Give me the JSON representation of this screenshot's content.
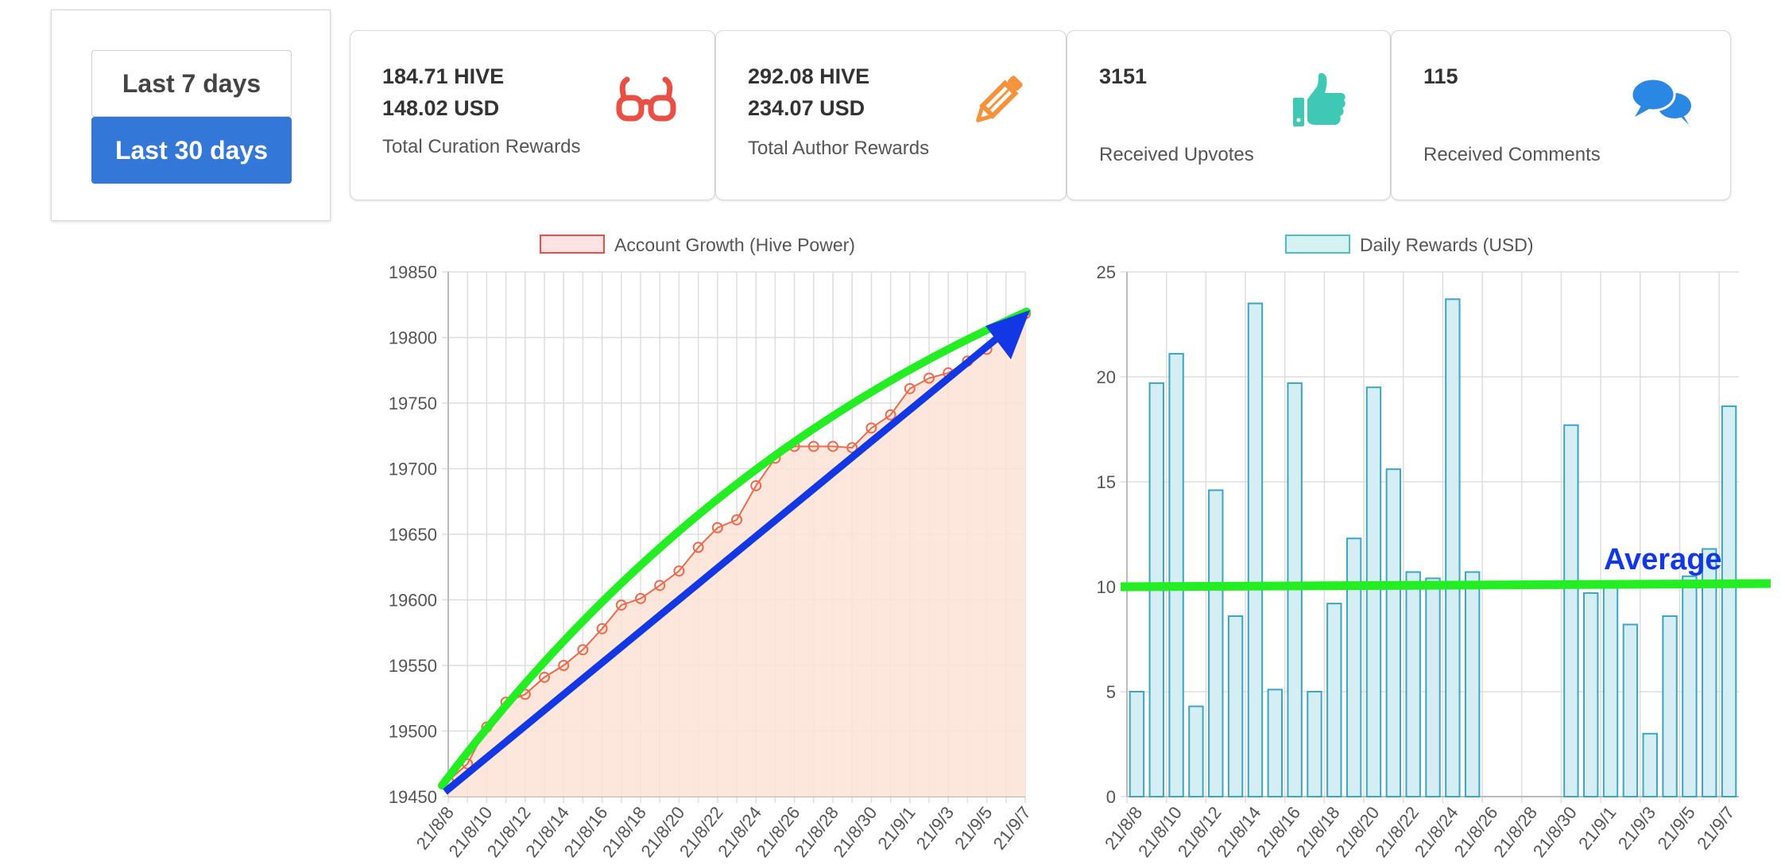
{
  "range_buttons": {
    "last7": "Last 7 days",
    "last30": "Last 30 days"
  },
  "cards": {
    "curation": {
      "hive": "184.71 HIVE",
      "usd": "148.02 USD",
      "label": "Total Curation Rewards",
      "icon": "glasses-icon",
      "color": "#ea4f43"
    },
    "author": {
      "hive": "292.08 HIVE",
      "usd": "234.07 USD",
      "label": "Total Author Rewards",
      "icon": "pencil-icon",
      "color": "#f6923c"
    },
    "upvotes": {
      "count": "3151",
      "label": "Received Upvotes",
      "icon": "thumbs-up-icon",
      "color": "#3dc9b3"
    },
    "comments": {
      "count": "115",
      "label": "Received Comments",
      "icon": "comments-icon",
      "color": "#2b87e4"
    }
  },
  "annotation": {
    "average_label": "Average",
    "average_color": "#1238e6",
    "line_color": "#22ee22"
  },
  "chart_data": [
    {
      "type": "line",
      "legend": "Account Growth (Hive Power)",
      "color": "#ee6a4a",
      "fill": "#fde3d6",
      "ylim": [
        19450,
        19850
      ],
      "yticks": [
        19450,
        19500,
        19550,
        19600,
        19650,
        19700,
        19750,
        19800,
        19850
      ],
      "x_labels": [
        "21/8/8",
        "21/8/10",
        "21/8/12",
        "21/8/14",
        "21/8/16",
        "21/8/18",
        "21/8/20",
        "21/8/22",
        "21/8/24",
        "21/8/26",
        "21/8/28",
        "21/8/30",
        "21/9/1",
        "21/9/3",
        "21/9/5",
        "21/9/7"
      ],
      "values": [
        19462,
        19475,
        19503,
        19522,
        19528,
        19541,
        19550,
        19562,
        19578,
        19596,
        19601,
        19611,
        19622,
        19640,
        19655,
        19661,
        19687,
        19708,
        19717,
        19717,
        19717,
        19716,
        19731,
        19741,
        19761,
        19769,
        19773,
        19782,
        19791,
        19806,
        19818
      ]
    },
    {
      "type": "bar",
      "legend": "Daily Rewards (USD)",
      "color": "#3aa6c6",
      "fill": "#d5eef4",
      "legend_color": "#4bc0c0",
      "ylim": [
        0,
        25
      ],
      "yticks": [
        0,
        5,
        10,
        15,
        20,
        25
      ],
      "x_labels": [
        "21/8/8",
        "21/8/10",
        "21/8/12",
        "21/8/14",
        "21/8/16",
        "21/8/18",
        "21/8/20",
        "21/8/22",
        "21/8/24",
        "21/8/26",
        "21/8/28",
        "21/8/30",
        "21/9/1",
        "21/9/3",
        "21/9/5",
        "21/9/7"
      ],
      "values": [
        5.0,
        19.7,
        21.1,
        4.3,
        14.6,
        8.6,
        23.5,
        5.1,
        19.7,
        5.0,
        9.2,
        12.3,
        19.5,
        15.6,
        10.7,
        10.4,
        23.7,
        10.7,
        0,
        0,
        0,
        0,
        17.7,
        9.7,
        10.0,
        8.2,
        3.0,
        8.6,
        10.5,
        11.8,
        18.6
      ],
      "average": 10
    }
  ]
}
